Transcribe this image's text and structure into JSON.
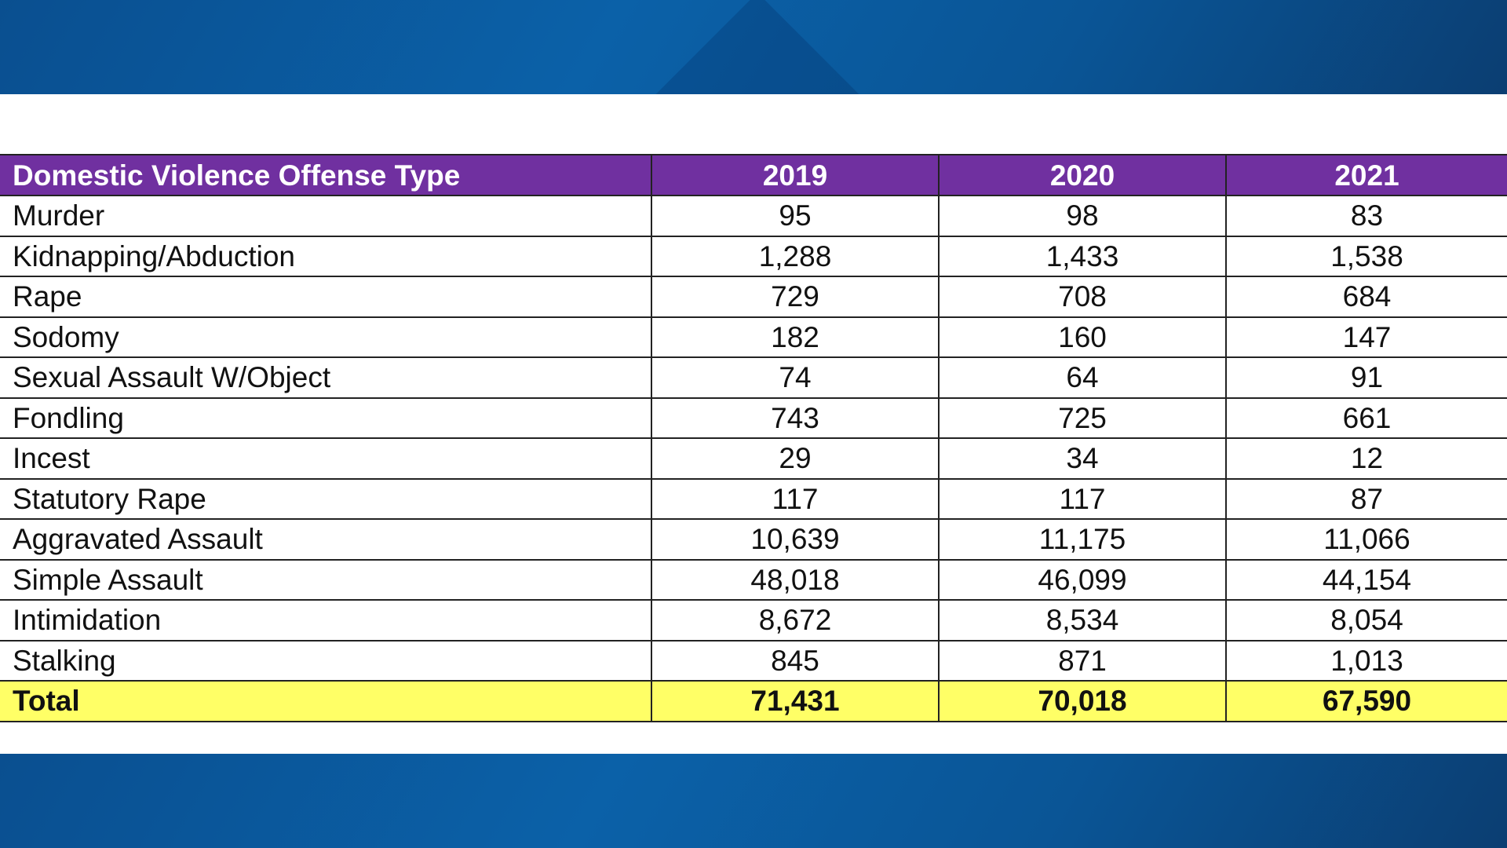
{
  "table": {
    "headers": [
      "Domestic Violence Offense Type",
      "2019",
      "2020",
      "2021"
    ],
    "rows": [
      {
        "type": "Murder",
        "y2019": "95",
        "y2020": "98",
        "y2021": "83"
      },
      {
        "type": "Kidnapping/Abduction",
        "y2019": "1,288",
        "y2020": "1,433",
        "y2021": "1,538"
      },
      {
        "type": "Rape",
        "y2019": "729",
        "y2020": "708",
        "y2021": "684"
      },
      {
        "type": "Sodomy",
        "y2019": "182",
        "y2020": "160",
        "y2021": "147"
      },
      {
        "type": "Sexual Assault W/Object",
        "y2019": "74",
        "y2020": "64",
        "y2021": "91"
      },
      {
        "type": "Fondling",
        "y2019": "743",
        "y2020": "725",
        "y2021": "661"
      },
      {
        "type": "Incest",
        "y2019": "29",
        "y2020": "34",
        "y2021": "12"
      },
      {
        "type": "Statutory Rape",
        "y2019": "117",
        "y2020": "117",
        "y2021": "87"
      },
      {
        "type": "Aggravated Assault",
        "y2019": "10,639",
        "y2020": "11,175",
        "y2021": "11,066"
      },
      {
        "type": "Simple Assault",
        "y2019": "48,018",
        "y2020": "46,099",
        "y2021": "44,154"
      },
      {
        "type": "Intimidation",
        "y2019": "8,672",
        "y2020": "8,534",
        "y2021": "8,054"
      },
      {
        "type": "Stalking",
        "y2019": "845",
        "y2020": "871",
        "y2021": "1,013"
      }
    ],
    "total": {
      "type": "Total",
      "y2019": "71,431",
      "y2020": "70,018",
      "y2021": "67,590"
    }
  },
  "colors": {
    "header_bg": "#7030a0",
    "total_bg": "#ffff66",
    "background_blue": "#0a5596"
  }
}
